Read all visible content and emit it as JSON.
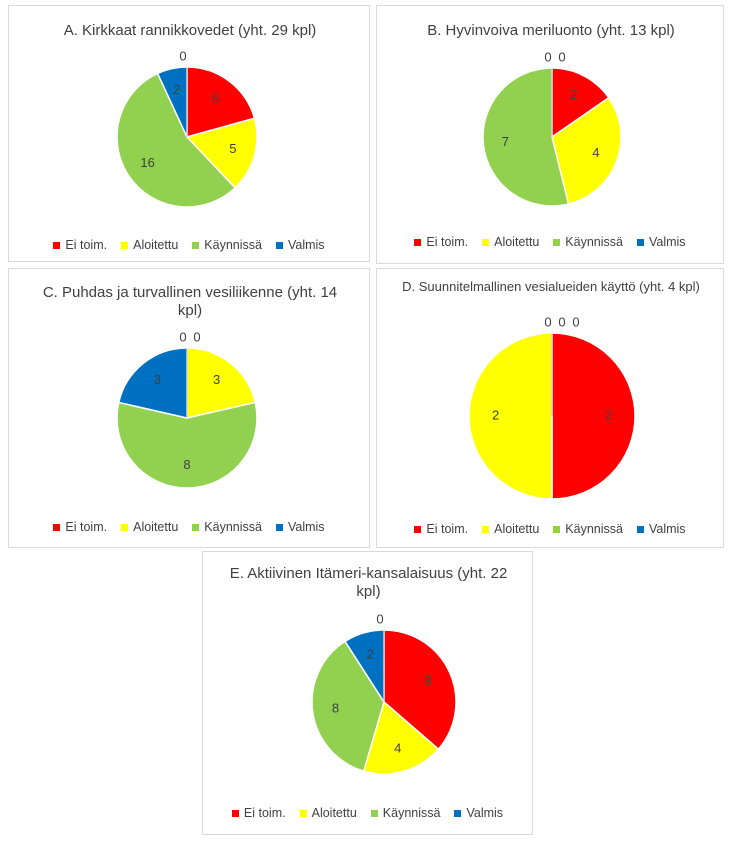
{
  "chart_data": [
    {
      "type": "pie",
      "title": "A. Kirkkaat rannikkovedet (yht. 29 kpl)",
      "categories": [
        "Ei toim.",
        "Aloitettu",
        "Käynnissä",
        "Valmis",
        null
      ],
      "values": [
        6,
        5,
        16,
        2,
        0
      ],
      "colors": [
        "#ff0000",
        "#ffff00",
        "#92d050",
        "#0070c0"
      ]
    },
    {
      "type": "pie",
      "title": "B. Hyvinvoiva meriluonto (yht. 13 kpl)",
      "categories": [
        "Ei toim.",
        "Aloitettu",
        "Käynnissä",
        "Valmis",
        null
      ],
      "values": [
        2,
        4,
        7,
        0,
        0
      ],
      "colors": [
        "#ff0000",
        "#ffff00",
        "#92d050",
        "#0070c0"
      ]
    },
    {
      "type": "pie",
      "title": "C. Puhdas ja turvallinen vesiliikenne (yht. 14 kpl)",
      "categories": [
        "Ei toim.",
        "Aloitettu",
        "Käynnissä",
        "Valmis",
        null
      ],
      "values": [
        0,
        3,
        8,
        3,
        0
      ],
      "colors": [
        "#ff0000",
        "#ffff00",
        "#92d050",
        "#0070c0"
      ]
    },
    {
      "type": "pie",
      "title": "D. Suunnitelmallinen vesialueiden käyttö (yht. 4 kpl)",
      "categories": [
        "Ei toim.",
        "Aloitettu",
        "Käynnissä",
        "Valmis",
        null
      ],
      "values": [
        2,
        2,
        0,
        0,
        0
      ],
      "colors": [
        "#ff0000",
        "#ffff00",
        "#92d050",
        "#0070c0"
      ]
    },
    {
      "type": "pie",
      "title": "E. Aktiivinen Itämeri-kansalaisuus (yht. 22 kpl)",
      "categories": [
        "Ei toim.",
        "Aloitettu",
        "Käynnissä",
        "Valmis",
        null
      ],
      "values": [
        8,
        4,
        8,
        2,
        0
      ],
      "colors": [
        "#ff0000",
        "#ffff00",
        "#92d050",
        "#0070c0"
      ]
    }
  ]
}
